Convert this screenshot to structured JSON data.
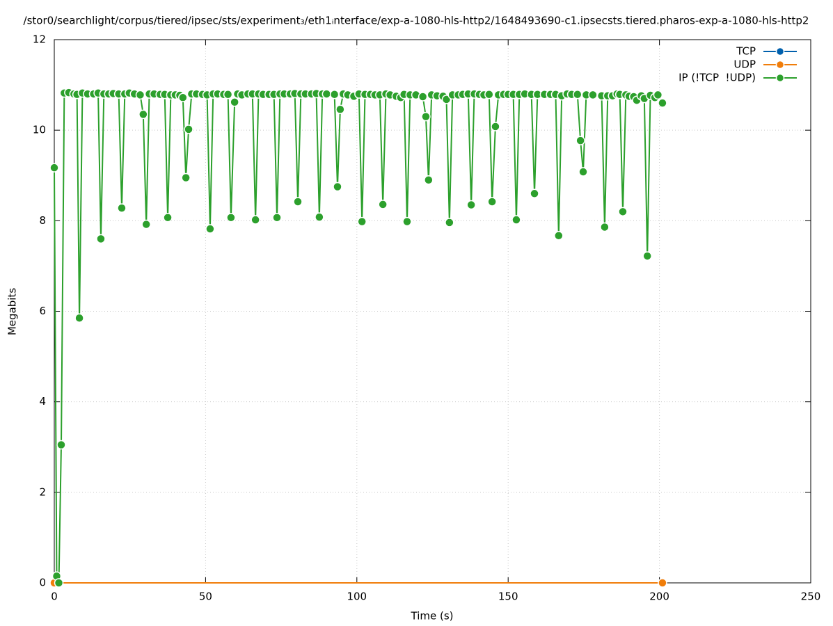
{
  "chart_data": {
    "type": "line",
    "title": "/stor0/searchlight/corpus/tiered/ipsec/sts/experiment₃/eth1ᵢnterface/exp-a-1080-hls-http2/1648493690-c1.ipsecsts.tiered.pharos-exp-a-1080-hls-http2",
    "xlabel": "Time (s)",
    "ylabel": "Megabits",
    "xlim": [
      0,
      250
    ],
    "ylim": [
      0,
      12
    ],
    "xticks": [
      0,
      50,
      100,
      150,
      200,
      250
    ],
    "yticks": [
      0,
      2,
      4,
      6,
      8,
      10,
      12
    ],
    "grid": true,
    "legend": "top-right",
    "series": [
      {
        "name": "TCP",
        "color": "#0060ad",
        "x": [],
        "values": []
      },
      {
        "name": "UDP",
        "color": "#f07d0a",
        "x": [
          0,
          201
        ],
        "values": [
          0,
          0
        ]
      },
      {
        "name": "IP (!TCP  !UDP)",
        "color": "#2ca02c",
        "x": [
          0,
          0.8,
          1.5,
          2.3,
          3.3,
          4.8,
          6.5,
          7.5,
          8.3,
          9.3,
          11,
          13,
          14.5,
          15.4,
          16.4,
          18,
          19.5,
          21.3,
          22.3,
          23.3,
          24.8,
          26.5,
          28.4,
          29.4,
          30.4,
          31.4,
          33,
          35,
          36.5,
          37.5,
          38.5,
          40,
          41.5,
          42.5,
          43.5,
          44.4,
          45.4,
          47,
          49,
          50.5,
          51.5,
          52.5,
          54,
          56,
          57.4,
          58.4,
          59.6,
          60.6,
          62,
          64,
          65.5,
          66.5,
          67.5,
          69,
          71,
          72.6,
          73.6,
          74.6,
          76,
          78,
          79.5,
          80.5,
          81.5,
          83,
          85,
          86.6,
          87.6,
          88.6,
          90,
          92.6,
          93.6,
          94.5,
          95.5,
          97,
          99,
          100.7,
          101.7,
          102.7,
          104.5,
          106,
          107.6,
          108.6,
          109.6,
          111,
          113,
          114.5,
          115.6,
          116.6,
          117.6,
          119.5,
          121.8,
          122.8,
          123.7,
          124.7,
          126.5,
          128.5,
          129.6,
          130.6,
          131.6,
          133.5,
          135,
          136.8,
          137.8,
          138.8,
          140.5,
          142,
          143.7,
          144.7,
          145.8,
          146.8,
          148.5,
          150,
          151.7,
          152.7,
          153.7,
          155.5,
          157.7,
          158.7,
          159.7,
          162,
          164,
          165.7,
          166.7,
          167.7,
          169.5,
          171,
          172.9,
          173.9,
          174.8,
          175.8,
          178,
          180.9,
          181.9,
          182.9,
          184.5,
          186,
          186.9,
          187.9,
          188.9,
          190,
          191.5,
          192.5,
          194,
          195,
          196,
          197,
          198.5,
          199.5,
          201
        ],
        "values": [
          9.17,
          0.15,
          0,
          3.05,
          10.82,
          10.83,
          10.8,
          10.79,
          5.85,
          10.82,
          10.8,
          10.8,
          10.82,
          7.6,
          10.8,
          10.8,
          10.81,
          10.8,
          8.28,
          10.8,
          10.82,
          10.8,
          10.78,
          10.35,
          7.92,
          10.8,
          10.8,
          10.79,
          10.79,
          8.07,
          10.78,
          10.78,
          10.77,
          10.72,
          8.95,
          10.02,
          10.8,
          10.8,
          10.79,
          10.78,
          7.82,
          10.8,
          10.8,
          10.79,
          10.79,
          8.07,
          10.62,
          10.8,
          10.78,
          10.8,
          10.8,
          8.02,
          10.8,
          10.79,
          10.79,
          10.79,
          8.07,
          10.8,
          10.8,
          10.8,
          10.81,
          8.42,
          10.8,
          10.8,
          10.8,
          10.81,
          8.08,
          10.8,
          10.8,
          10.79,
          8.75,
          10.46,
          10.8,
          10.78,
          10.75,
          10.8,
          7.98,
          10.79,
          10.79,
          10.78,
          10.78,
          8.36,
          10.8,
          10.78,
          10.75,
          10.72,
          10.79,
          7.98,
          10.78,
          10.78,
          10.74,
          10.3,
          8.9,
          10.78,
          10.76,
          10.75,
          10.68,
          7.96,
          10.78,
          10.78,
          10.79,
          10.8,
          8.35,
          10.8,
          10.79,
          10.78,
          10.79,
          8.42,
          10.08,
          10.78,
          10.79,
          10.79,
          10.79,
          8.02,
          10.79,
          10.8,
          10.79,
          8.6,
          10.79,
          10.79,
          10.79,
          10.79,
          7.67,
          10.76,
          10.8,
          10.79,
          10.79,
          9.77,
          9.08,
          10.78,
          10.78,
          10.76,
          7.86,
          10.76,
          10.76,
          10.8,
          10.79,
          8.2,
          10.78,
          10.75,
          10.74,
          10.66,
          10.76,
          10.7,
          7.22,
          10.77,
          10.72,
          10.78,
          10.6
        ]
      }
    ]
  }
}
